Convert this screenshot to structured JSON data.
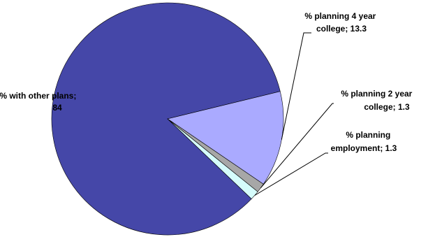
{
  "chart_data": {
    "type": "pie",
    "slices": [
      {
        "label": "% with other plans",
        "value": 84,
        "display": "84",
        "color": "#4547a8",
        "label_lines": [
          "% with other plans;",
          "84"
        ]
      },
      {
        "label": "% planning 4 year college",
        "value": 13.3,
        "display": "13.3",
        "color": "#aaaaff",
        "label_lines": [
          "% planning 4 year",
          "college; 13.3"
        ]
      },
      {
        "label": "% planning 2 year college",
        "value": 1.3,
        "display": "1.3",
        "color": "#a7a7a7",
        "label_lines": [
          "% planning 2 year",
          "college; 1.3"
        ]
      },
      {
        "label": "% planning employment",
        "value": 1.3,
        "display": "1.3",
        "color": "#d5fcfc",
        "label_lines": [
          "% planning",
          "employment; 1.3"
        ]
      }
    ],
    "slice_outline_color": "#000000",
    "leader_line_color": "#000000",
    "legend": "none",
    "title": ""
  }
}
